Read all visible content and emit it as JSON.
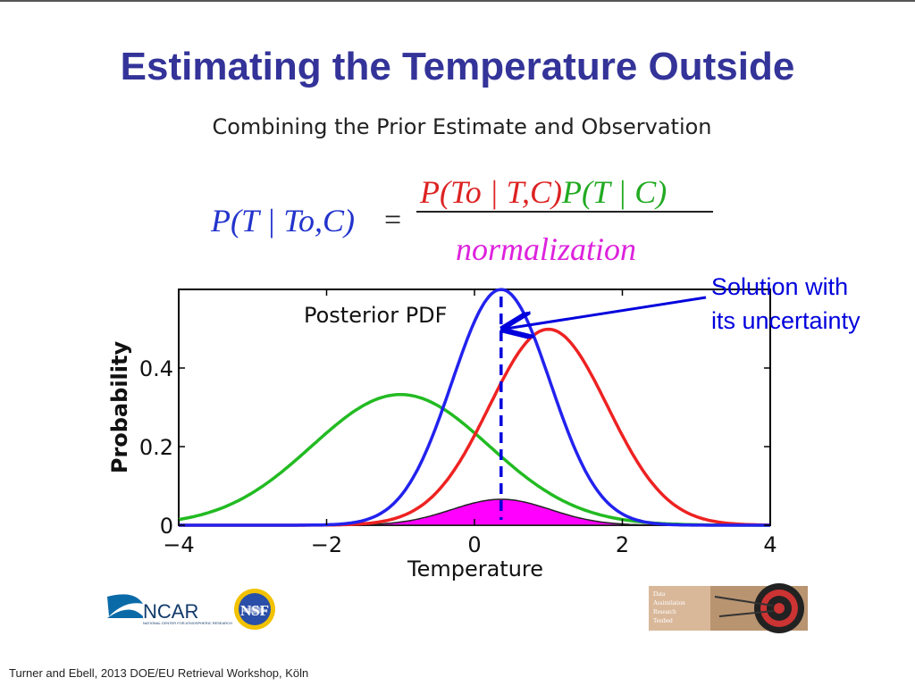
{
  "slide": {
    "title": "Estimating the Temperature Outside",
    "subtitle": "Combining the Prior Estimate and Observation",
    "footer": "Turner and Ebell, 2013 DOE/EU Retrieval Workshop, Köln"
  },
  "equation": {
    "lhs": "P(T | To,C)",
    "equals": "=",
    "numerator_likelihood": "P(To | T,C)",
    "numerator_prior": "P(T | C)",
    "denominator": "normalization",
    "colors": {
      "lhs": "#2233cc",
      "likelihood": "#dd2222",
      "prior": "#22aa22",
      "denominator": "#dd22dd"
    }
  },
  "annotation": {
    "line1": "Solution with",
    "line2": "its uncertainty",
    "color": "#0000dd"
  },
  "logos": {
    "ncar": {
      "text": "NCAR",
      "subtext": "NATIONAL CENTER FOR ATMOSPHERIC RESEARCH"
    },
    "nsf": {
      "text": "NSF"
    },
    "dart": {
      "lines": [
        "Data",
        "Assimilation",
        "Research",
        "Testbed"
      ]
    }
  },
  "chart_data": {
    "type": "line",
    "title": "Posterior PDF",
    "xlabel": "Temperature",
    "ylabel": "Probability",
    "xlim": [
      -4,
      4
    ],
    "ylim": [
      0,
      0.6
    ],
    "xticks": [
      -4,
      -2,
      0,
      2,
      4
    ],
    "yticks": [
      0,
      0.2,
      0.4
    ],
    "series": [
      {
        "kind": "prior",
        "color": "#22bb22",
        "mean": -1.0,
        "sd": 1.2
      },
      {
        "kind": "likelihood",
        "color": "#ee2222",
        "mean": 1.0,
        "sd": 0.8
      },
      {
        "kind": "posterior",
        "color": "#2222ee",
        "mean": 0.36,
        "sd": 0.665
      },
      {
        "kind": "product",
        "color": "#ff00ff",
        "mean": 0.36,
        "sd": 0.665,
        "peak": 0.066
      }
    ],
    "estimate_line": {
      "x": 0.36,
      "color": "#0000dd",
      "style": "dashed"
    }
  }
}
